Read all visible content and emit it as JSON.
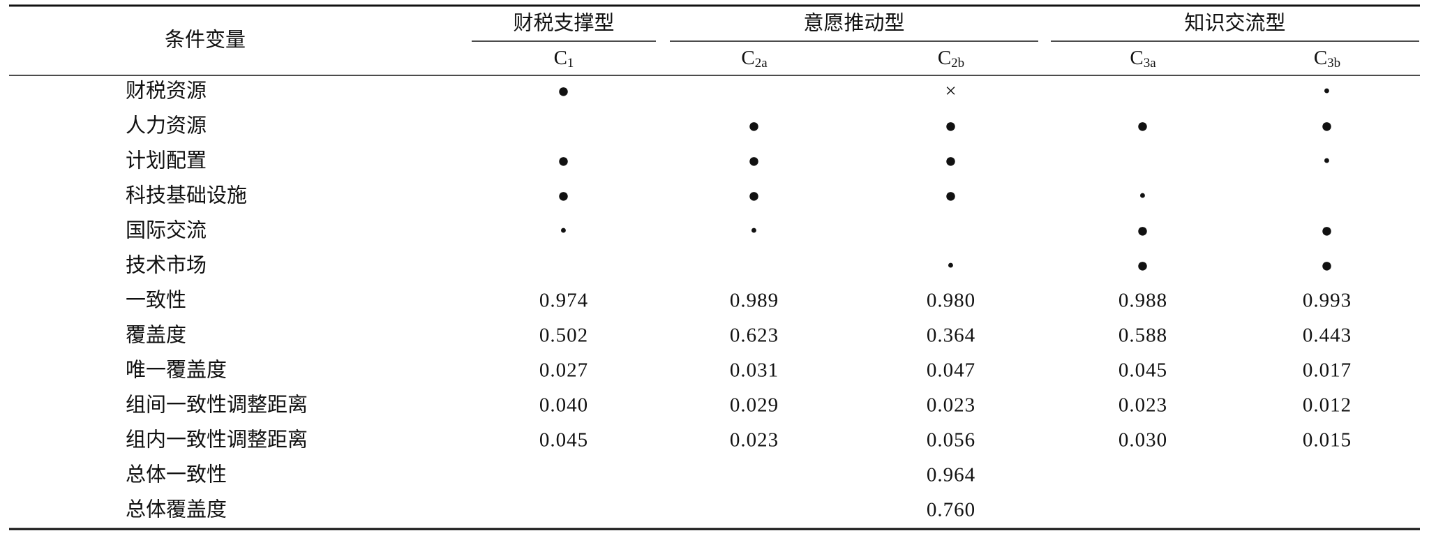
{
  "header": {
    "label": "条件变量",
    "groups": [
      {
        "title": "财税支撑型",
        "columns": [
          {
            "main": "C",
            "sub": "1"
          }
        ]
      },
      {
        "title": "意愿推动型",
        "columns": [
          {
            "main": "C",
            "sub": "2a"
          },
          {
            "main": "C",
            "sub": "2b"
          }
        ]
      },
      {
        "title": "知识交流型",
        "columns": [
          {
            "main": "C",
            "sub": "3a"
          },
          {
            "main": "C",
            "sub": "3b"
          }
        ]
      }
    ]
  },
  "rows": [
    {
      "label": "财税资源",
      "cells": [
        "●",
        null,
        "×",
        null,
        "•"
      ]
    },
    {
      "label": "人力资源",
      "cells": [
        null,
        "●",
        "●",
        "●",
        "●"
      ]
    },
    {
      "label": "计划配置",
      "cells": [
        "●",
        "●",
        "●",
        null,
        "•"
      ]
    },
    {
      "label": "科技基础设施",
      "cells": [
        "●",
        "●",
        "●",
        "•",
        null
      ]
    },
    {
      "label": "国际交流",
      "cells": [
        "•",
        "•",
        null,
        "●",
        "●"
      ]
    },
    {
      "label": "技术市场",
      "cells": [
        null,
        null,
        "•",
        "●",
        "●"
      ]
    },
    {
      "label": "一致性",
      "cells": [
        "0.974",
        "0.989",
        "0.980",
        "0.988",
        "0.993"
      ]
    },
    {
      "label": "覆盖度",
      "cells": [
        "0.502",
        "0.623",
        "0.364",
        "0.588",
        "0.443"
      ]
    },
    {
      "label": "唯一覆盖度",
      "cells": [
        "0.027",
        "0.031",
        "0.047",
        "0.045",
        "0.017"
      ]
    },
    {
      "label": "组间一致性调整距离",
      "cells": [
        "0.040",
        "0.029",
        "0.023",
        "0.023",
        "0.012"
      ]
    },
    {
      "label": "组内一致性调整距离",
      "cells": [
        "0.045",
        "0.023",
        "0.056",
        "0.030",
        "0.015"
      ]
    },
    {
      "label": "总体一致性",
      "cells": [
        null,
        null,
        "0.964",
        null,
        null
      ]
    },
    {
      "label": "总体覆盖度",
      "cells": [
        null,
        null,
        "0.760",
        null,
        null
      ]
    }
  ]
}
